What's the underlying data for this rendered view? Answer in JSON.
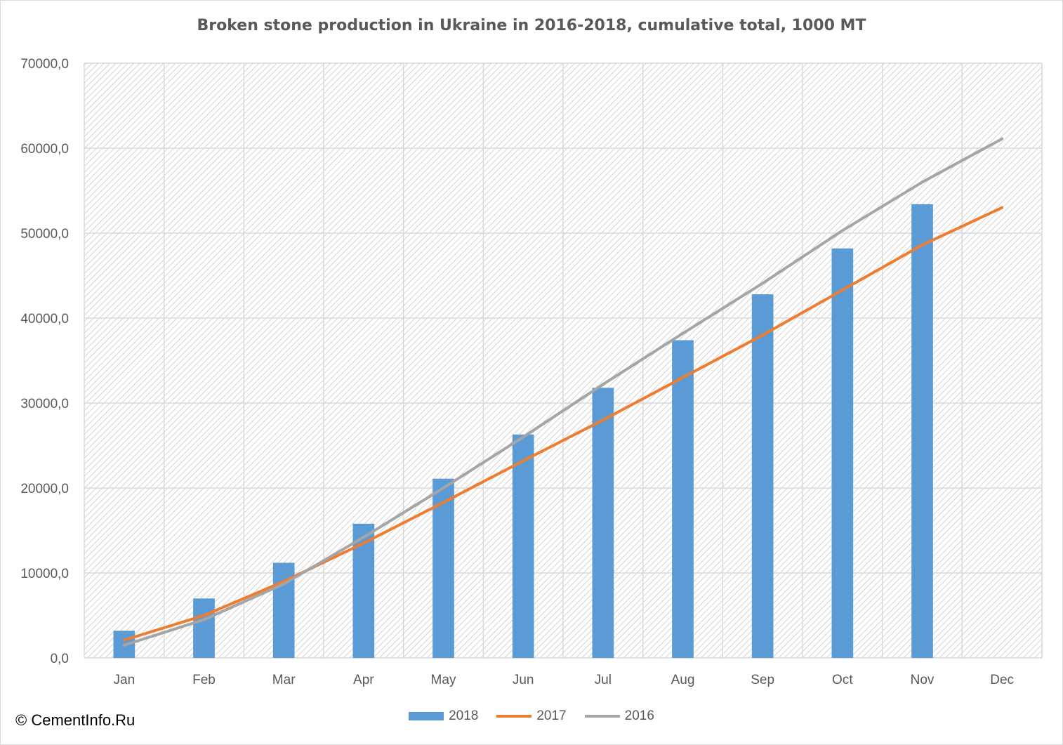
{
  "chart_data": {
    "type": "bar",
    "title": "Broken stone production in Ukraine in 2016-2018, cumulative total, 1000 MT",
    "categories": [
      "Jan",
      "Feb",
      "Mar",
      "Apr",
      "May",
      "Jun",
      "Jul",
      "Aug",
      "Sep",
      "Oct",
      "Nov",
      "Dec"
    ],
    "ylim": [
      0,
      70000
    ],
    "yticks": [
      "0,0",
      "10000,0",
      "20000,0",
      "30000,0",
      "40000,0",
      "50000,0",
      "60000,0",
      "70000,0"
    ],
    "ytick_values": [
      0,
      10000,
      20000,
      30000,
      40000,
      50000,
      60000,
      70000
    ],
    "grid": true,
    "legend_position": "bottom",
    "series": [
      {
        "name": "2018",
        "type": "bar",
        "color": "#5b9bd5",
        "values": [
          3200,
          7000,
          11200,
          15800,
          21100,
          26300,
          31800,
          37400,
          42800,
          48200,
          53400,
          null
        ]
      },
      {
        "name": "2017",
        "type": "line",
        "color": "#ed7d31",
        "values": [
          2100,
          5000,
          9000,
          13500,
          18300,
          23200,
          28000,
          33000,
          38000,
          43300,
          48600,
          53000
        ]
      },
      {
        "name": "2016",
        "type": "line",
        "color": "#a5a5a5",
        "values": [
          1500,
          4500,
          8700,
          14200,
          20000,
          26000,
          32200,
          38200,
          44100,
          50300,
          56000,
          61100
        ]
      }
    ]
  },
  "footer": {
    "copyright": "© CementInfo.Ru"
  }
}
